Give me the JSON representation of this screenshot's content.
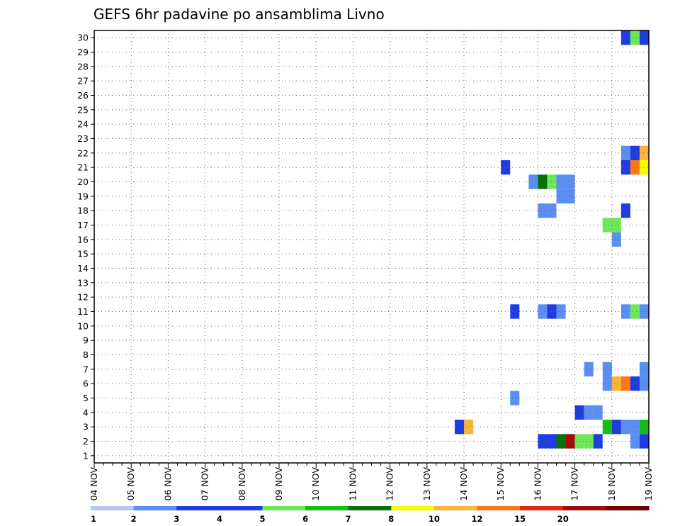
{
  "chart_data": {
    "type": "heatmap",
    "title": "GEFS 6hr padavine po ansamblima Livno",
    "xlabel": "",
    "ylabel": "",
    "x_ticks": [
      "04 NOV",
      "05 NOV",
      "06 NOV",
      "07 NOV",
      "08 NOV",
      "09 NOV",
      "10 NOV",
      "11 NOV",
      "12 NOV",
      "13 NOV",
      "14 NOV",
      "15 NOV",
      "16 NOV",
      "17 NOV",
      "18 NOV",
      "19 NOV"
    ],
    "y_ticks": [
      "1",
      "2",
      "3",
      "4",
      "5",
      "6",
      "7",
      "8",
      "9",
      "10",
      "11",
      "12",
      "13",
      "14",
      "15",
      "16",
      "17",
      "18",
      "19",
      "20",
      "21",
      "22",
      "23",
      "24",
      "25",
      "26",
      "27",
      "28",
      "29",
      "30"
    ],
    "xlim": [
      0,
      15
    ],
    "ylim": [
      0.5,
      30.5
    ],
    "step_days": 0.25,
    "grid": true,
    "colorbar": {
      "labels": [
        "1",
        "2",
        "3",
        "4",
        "5",
        "6",
        "7",
        "8",
        "10",
        "12",
        "15",
        "20"
      ],
      "colors": [
        "#b4c8f8",
        "#5a8ef0",
        "#1e3ce0",
        "#1e3ce0",
        "#6ee65a",
        "#14be14",
        "#0a6e0a",
        "#fafa00",
        "#fab43c",
        "#fa7814",
        "#e12814",
        "#a00a0a",
        "#6e0000"
      ]
    },
    "cells": [
      [
        14.25,
        30,
        3
      ],
      [
        14.5,
        30,
        4
      ],
      [
        14.75,
        30,
        2
      ],
      [
        15.0,
        30,
        1
      ],
      [
        15.25,
        30,
        1
      ],
      [
        15.75,
        30,
        7
      ],
      [
        16.0,
        30,
        8
      ],
      [
        16.25,
        30,
        8
      ],
      [
        16.5,
        30,
        2
      ],
      [
        17.0,
        30,
        6
      ],
      [
        18.75,
        29,
        2
      ],
      [
        18.0,
        28,
        5
      ],
      [
        18.25,
        28,
        2
      ],
      [
        14.25,
        22,
        1
      ],
      [
        14.5,
        22,
        2
      ],
      [
        14.75,
        22,
        8
      ],
      [
        15.0,
        22,
        12
      ],
      [
        15.25,
        22,
        12
      ],
      [
        15.5,
        22,
        3
      ],
      [
        15.75,
        22,
        8
      ],
      [
        16.0,
        22,
        2
      ],
      [
        16.25,
        22,
        3
      ],
      [
        16.5,
        22,
        1
      ],
      [
        16.75,
        22,
        2
      ],
      [
        11.0,
        21,
        2
      ],
      [
        14.25,
        21,
        2
      ],
      [
        14.5,
        21,
        9
      ],
      [
        14.75,
        21,
        7
      ],
      [
        15.0,
        21,
        9
      ],
      [
        15.25,
        21,
        2
      ],
      [
        11.75,
        20,
        1
      ],
      [
        12.0,
        20,
        6
      ],
      [
        12.25,
        20,
        4
      ],
      [
        12.5,
        20,
        1
      ],
      [
        12.75,
        20,
        1
      ],
      [
        17.75,
        20,
        1
      ],
      [
        12.5,
        19,
        1
      ],
      [
        12.75,
        19,
        1
      ],
      [
        12.0,
        18,
        1
      ],
      [
        12.25,
        18,
        1
      ],
      [
        14.25,
        18,
        3
      ],
      [
        13.75,
        17,
        4
      ],
      [
        14.0,
        17,
        4
      ],
      [
        14.0,
        16,
        1
      ],
      [
        16.25,
        15,
        8
      ],
      [
        18.5,
        14,
        8
      ],
      [
        18.75,
        14,
        5
      ],
      [
        17.5,
        13,
        1
      ],
      [
        17.75,
        13,
        6
      ],
      [
        18.0,
        13,
        11
      ],
      [
        18.25,
        13,
        10
      ],
      [
        11.25,
        11,
        2
      ],
      [
        12.0,
        11,
        1
      ],
      [
        12.25,
        11,
        3
      ],
      [
        12.5,
        11,
        1
      ],
      [
        14.25,
        11,
        1
      ],
      [
        14.5,
        11,
        4
      ],
      [
        14.75,
        11,
        1
      ],
      [
        16.5,
        11,
        1
      ],
      [
        16.75,
        11,
        7
      ],
      [
        17.0,
        11,
        8
      ],
      [
        17.5,
        11,
        2
      ],
      [
        17.75,
        11,
        3
      ],
      [
        18.0,
        11,
        2
      ],
      [
        18.25,
        11,
        2
      ],
      [
        18.5,
        11,
        1
      ],
      [
        18.75,
        11,
        2
      ],
      [
        15.75,
        10,
        4
      ],
      [
        16.0,
        10,
        11
      ],
      [
        15.0,
        9,
        1
      ],
      [
        15.75,
        9,
        1
      ],
      [
        19.0,
        9,
        2
      ],
      [
        15.5,
        8,
        2
      ],
      [
        15.75,
        8,
        1
      ],
      [
        16.0,
        8,
        7
      ],
      [
        16.25,
        8,
        10
      ],
      [
        16.5,
        8,
        7
      ],
      [
        16.75,
        8,
        10
      ],
      [
        17.0,
        8,
        9
      ],
      [
        17.25,
        8,
        8
      ],
      [
        17.5,
        8,
        4
      ],
      [
        17.75,
        8,
        1
      ],
      [
        18.25,
        8,
        1
      ],
      [
        13.25,
        7,
        1
      ],
      [
        13.75,
        7,
        1
      ],
      [
        14.75,
        7,
        1
      ],
      [
        15.0,
        7,
        3
      ],
      [
        16.0,
        7,
        1
      ],
      [
        16.5,
        7,
        5
      ],
      [
        13.75,
        6,
        1
      ],
      [
        14.0,
        6,
        8
      ],
      [
        14.25,
        6,
        9
      ],
      [
        14.5,
        6,
        2
      ],
      [
        14.75,
        6,
        1
      ],
      [
        17.5,
        6,
        1
      ],
      [
        17.75,
        6,
        3
      ],
      [
        18.0,
        6,
        8
      ],
      [
        18.25,
        6,
        5
      ],
      [
        18.5,
        6,
        1
      ],
      [
        19.0,
        6,
        1
      ],
      [
        11.25,
        5,
        1
      ],
      [
        16.25,
        5,
        2
      ],
      [
        16.5,
        5,
        10
      ],
      [
        16.75,
        5,
        1
      ],
      [
        13.0,
        4,
        2
      ],
      [
        13.25,
        4,
        1
      ],
      [
        13.5,
        4,
        1
      ],
      [
        18.5,
        4,
        8
      ],
      [
        18.75,
        4,
        8
      ],
      [
        9.75,
        3,
        2
      ],
      [
        10.0,
        3,
        8
      ],
      [
        13.75,
        3,
        5
      ],
      [
        14.0,
        3,
        3
      ],
      [
        14.25,
        3,
        1
      ],
      [
        14.5,
        3,
        1
      ],
      [
        14.75,
        3,
        5
      ],
      [
        15.0,
        3,
        8
      ],
      [
        16.25,
        3,
        3
      ],
      [
        16.5,
        3,
        8
      ],
      [
        16.75,
        3,
        10
      ],
      [
        17.0,
        3,
        11
      ],
      [
        17.25,
        3,
        1
      ],
      [
        12.0,
        2,
        2
      ],
      [
        12.25,
        2,
        3
      ],
      [
        12.5,
        2,
        6
      ],
      [
        12.75,
        2,
        11
      ],
      [
        13.0,
        2,
        4
      ],
      [
        13.25,
        2,
        4
      ],
      [
        13.5,
        2,
        2
      ],
      [
        14.5,
        2,
        1
      ],
      [
        14.75,
        2,
        2
      ],
      [
        15.0,
        2,
        6
      ],
      [
        15.25,
        2,
        10
      ],
      [
        15.5,
        2,
        10
      ]
    ]
  }
}
